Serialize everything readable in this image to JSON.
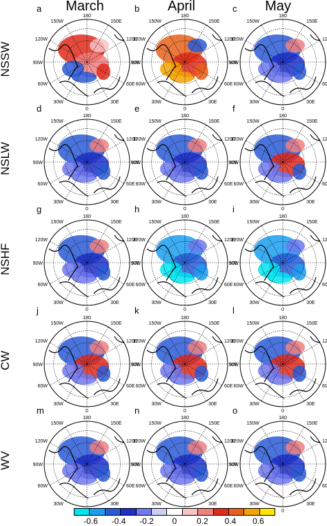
{
  "columns": [
    "March",
    "April",
    "May"
  ],
  "rows": [
    "NSSW",
    "NSLW",
    "NSHF",
    "CW",
    "WV"
  ],
  "panel_letters": [
    "a",
    "b",
    "c",
    "d",
    "e",
    "f",
    "g",
    "h",
    "i",
    "j",
    "k",
    "l",
    "m",
    "n",
    "o"
  ],
  "lon_labels": {
    "top": "180",
    "upper_left": "150W",
    "upper_right": "150E",
    "left_upper": "120W",
    "right_upper": "120E",
    "left": "90W",
    "right": "90E",
    "left_lower": "60W",
    "right_lower": "60E",
    "bottom_left": "30W",
    "bottom_right": "30E",
    "bottom": "0"
  },
  "colorbar": {
    "ticks": [
      "-0.6",
      "-0.4",
      "-0.2",
      "0",
      "0.2",
      "0.4",
      "0.6"
    ],
    "colors": [
      "#00e5ee",
      "#1a9ff0",
      "#2a5bd7",
      "#1f2fc9",
      "#6f78ee",
      "#c9cdf7",
      "#ffffff",
      "#f7c4c4",
      "#f08080",
      "#e02a1a",
      "#e8601a",
      "#f4a400",
      "#ffe600"
    ]
  },
  "panel_fields": {
    "a": "warm",
    "b": "hot",
    "c": "cool",
    "d": "cool",
    "e": "cool",
    "f": "mixed",
    "g": "cool",
    "h": "cold",
    "i": "cold",
    "j": "mixed",
    "k": "mixed",
    "l": "mixed",
    "m": "cool",
    "n": "cool",
    "o": "cool"
  }
}
